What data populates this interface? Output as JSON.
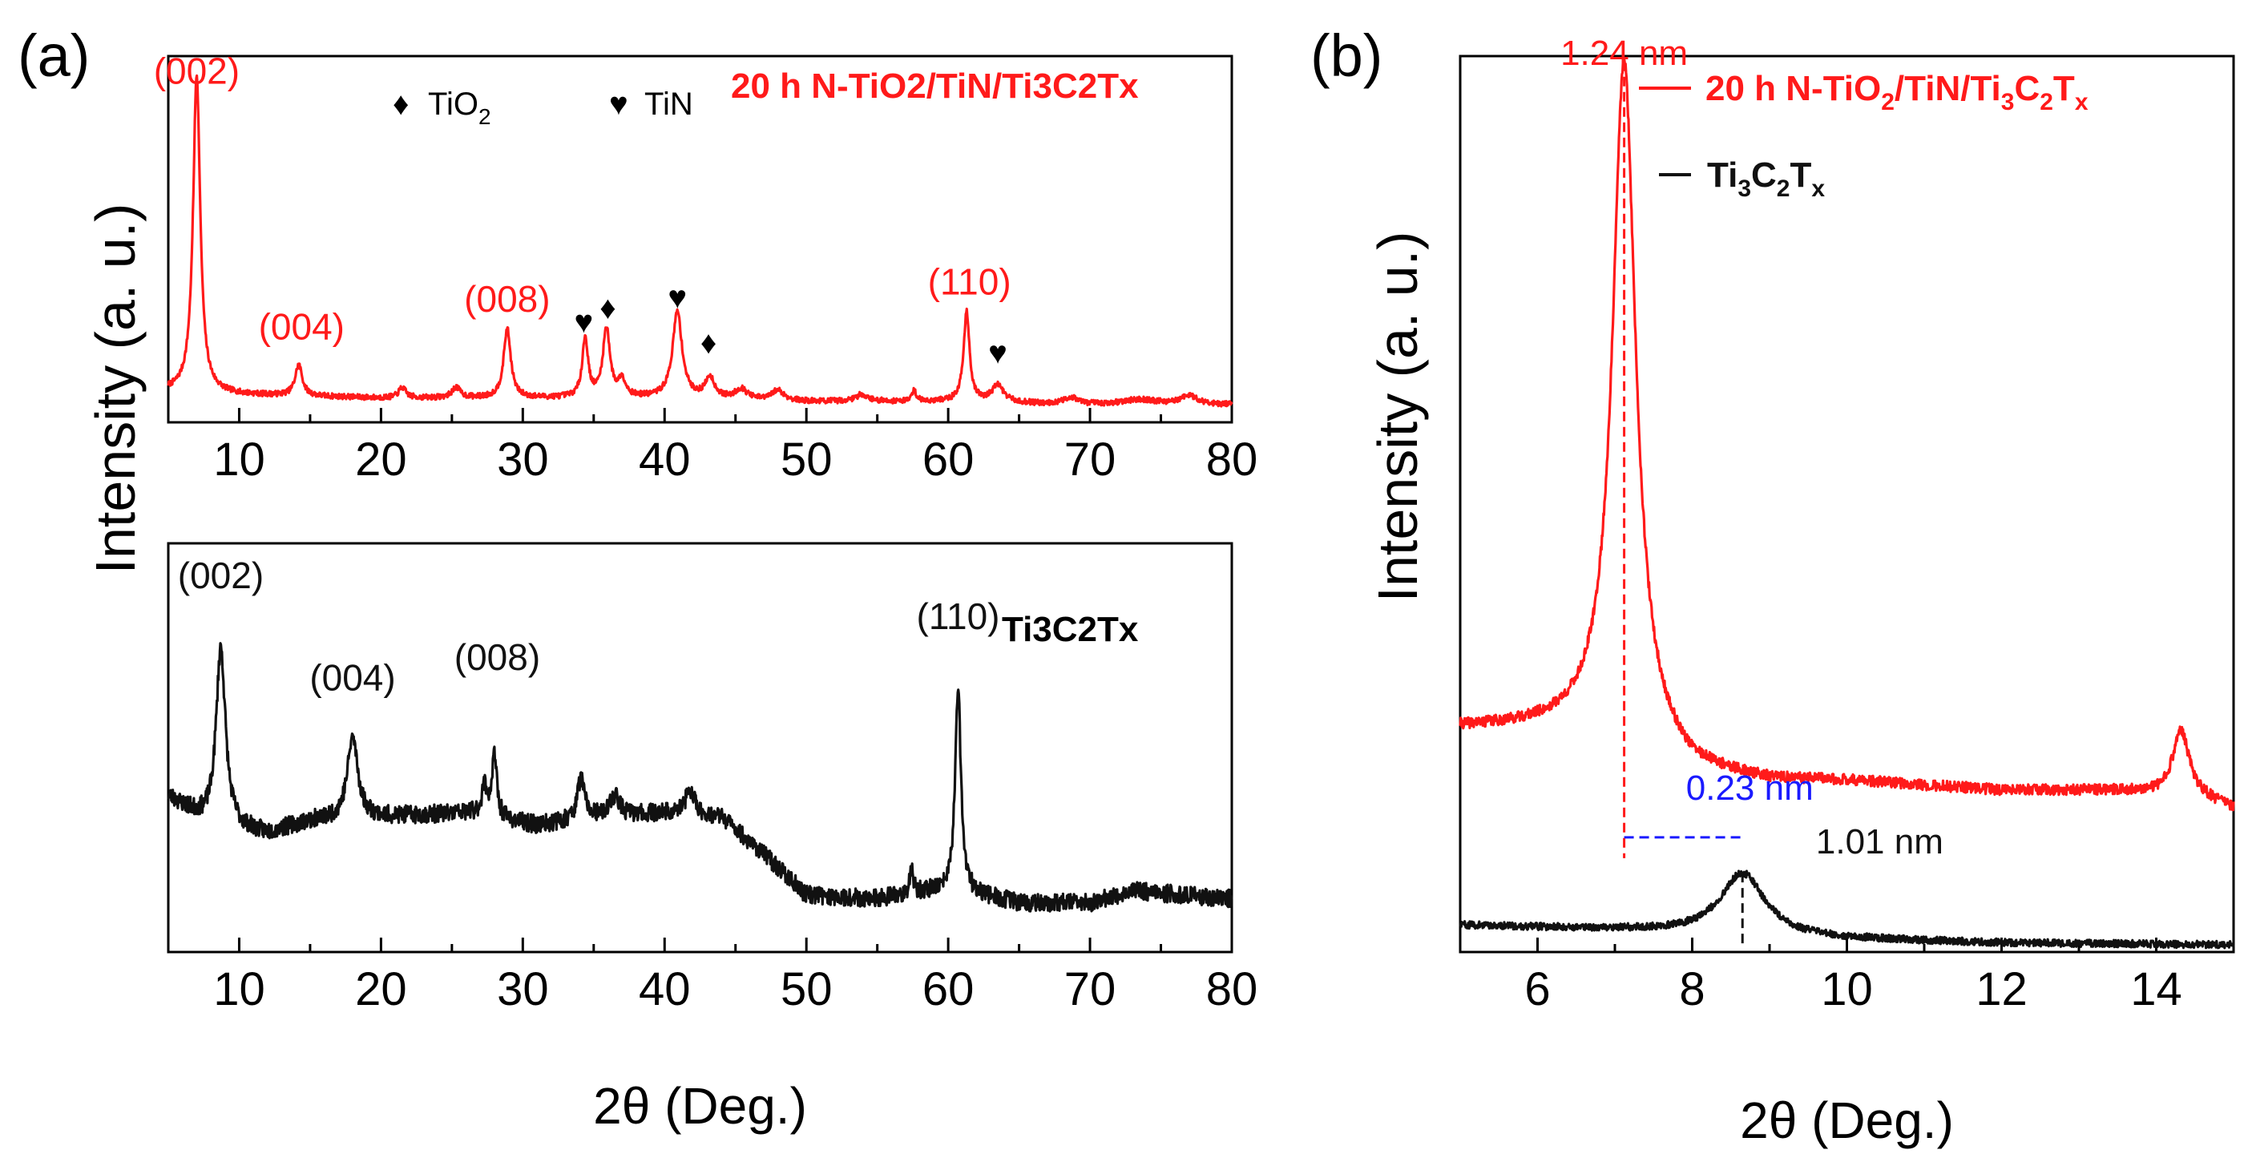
{
  "figure": {
    "panel_a_label": "(a)",
    "panel_b_label": "(b)"
  },
  "colors": {
    "red": "#ff1a1a",
    "black": "#111111",
    "blue": "#1a1aff",
    "axis": "#000000"
  },
  "chart_data": [
    {
      "id": "a_top",
      "type": "line",
      "title": "20 h N-TiO2/TiN/Ti3C2Tx",
      "xlabel": "2θ (Deg.)",
      "ylabel": "Intensity (a. u.)",
      "xlim": [
        5,
        80
      ],
      "ylim": [
        0,
        1.06
      ],
      "xticks": [
        10,
        20,
        30,
        40,
        50,
        60,
        70,
        80
      ],
      "series": [
        {
          "name": "20 h N-TiO2/TiN/Ti3C2Tx",
          "color": "#ff1a1a",
          "baseline": [
            [
              5,
              0.09
            ],
            [
              10,
              0.08
            ],
            [
              20,
              0.07
            ],
            [
              30,
              0.07
            ],
            [
              40,
              0.07
            ],
            [
              50,
              0.06
            ],
            [
              60,
              0.06
            ],
            [
              70,
              0.05
            ],
            [
              80,
              0.05
            ]
          ],
          "peaks": [
            [
              7.0,
              0.92,
              0.3
            ],
            [
              14.2,
              0.09,
              0.3
            ],
            [
              21.5,
              0.03,
              0.3
            ],
            [
              25.3,
              0.03,
              0.35
            ],
            [
              28.9,
              0.2,
              0.3
            ],
            [
              34.4,
              0.17,
              0.25
            ],
            [
              35.9,
              0.2,
              0.3
            ],
            [
              37.0,
              0.05,
              0.3
            ],
            [
              40.9,
              0.25,
              0.4
            ],
            [
              43.2,
              0.06,
              0.4
            ],
            [
              45.4,
              0.03,
              0.5
            ],
            [
              48.0,
              0.03,
              0.5
            ],
            [
              53.9,
              0.02,
              0.5
            ],
            [
              57.6,
              0.03,
              0.2
            ],
            [
              61.3,
              0.26,
              0.25
            ],
            [
              63.5,
              0.05,
              0.5
            ],
            [
              68.7,
              0.02,
              0.6
            ],
            [
              73.5,
              0.015,
              1.5
            ],
            [
              77.0,
              0.025,
              0.8
            ]
          ],
          "noise": 0.008
        }
      ],
      "annotations": [
        {
          "text": "(002)",
          "x": 7.0,
          "y": 0.98,
          "color": "#ff1a1a"
        },
        {
          "text": "(004)",
          "x": 14.4,
          "y": 0.24,
          "color": "#ff1a1a"
        },
        {
          "text": "(008)",
          "x": 28.9,
          "y": 0.32,
          "color": "#ff1a1a"
        },
        {
          "text": "(110)",
          "x": 61.5,
          "y": 0.37,
          "color": "#ff1a1a"
        }
      ],
      "markers": [
        {
          "symbol": "♥",
          "x": 34.3,
          "y": 0.26
        },
        {
          "symbol": "♦",
          "x": 36.0,
          "y": 0.3
        },
        {
          "symbol": "♥",
          "x": 40.9,
          "y": 0.33
        },
        {
          "symbol": "♦",
          "x": 43.1,
          "y": 0.2
        },
        {
          "symbol": "♥",
          "x": 63.5,
          "y": 0.17
        }
      ],
      "legend": [
        {
          "symbol": "♦",
          "prefix": "TiO",
          "sub": "2"
        },
        {
          "symbol": "♥",
          "prefix": "TiN",
          "sub": ""
        }
      ]
    },
    {
      "id": "a_bottom",
      "type": "line",
      "title": "Ti3C2Tx",
      "xlabel": "2θ (Deg.)",
      "ylabel": "Intensity (a. u.)",
      "xlim": [
        5,
        80
      ],
      "ylim": [
        0,
        1.0
      ],
      "xticks": [
        10,
        20,
        30,
        40,
        50,
        60,
        70,
        80
      ],
      "series": [
        {
          "name": "Ti3C2Tx",
          "color": "#111111",
          "baseline": [
            [
              5,
              0.38
            ],
            [
              8,
              0.31
            ],
            [
              12,
              0.29
            ],
            [
              15,
              0.32
            ],
            [
              20,
              0.33
            ],
            [
              26,
              0.34
            ],
            [
              31,
              0.31
            ],
            [
              35,
              0.33
            ],
            [
              40,
              0.34
            ],
            [
              44,
              0.33
            ],
            [
              47,
              0.24
            ],
            [
              50,
              0.14
            ],
            [
              55,
              0.13
            ],
            [
              59,
              0.15
            ],
            [
              62,
              0.14
            ],
            [
              65,
              0.12
            ],
            [
              70,
              0.12
            ],
            [
              73,
              0.15
            ],
            [
              80,
              0.13
            ]
          ],
          "peaks": [
            [
              8.7,
              0.44,
              0.4
            ],
            [
              18.0,
              0.2,
              0.45
            ],
            [
              27.3,
              0.07,
              0.25
            ],
            [
              28.0,
              0.15,
              0.2
            ],
            [
              34.1,
              0.1,
              0.3
            ],
            [
              36.5,
              0.05,
              0.4
            ],
            [
              41.8,
              0.06,
              0.4
            ],
            [
              57.4,
              0.06,
              0.15
            ],
            [
              60.7,
              0.49,
              0.25
            ]
          ],
          "noise": 0.022
        }
      ],
      "annotations": [
        {
          "text": "(002)",
          "x": 8.7,
          "y": 0.89,
          "color": "#111111"
        },
        {
          "text": "(004)",
          "x": 18.0,
          "y": 0.64,
          "color": "#111111"
        },
        {
          "text": "(008)",
          "x": 28.2,
          "y": 0.69,
          "color": "#111111"
        },
        {
          "text": "(110)",
          "x": 60.7,
          "y": 0.79,
          "color": "#111111"
        }
      ],
      "legend_parts": [
        "Ti",
        "3",
        "C",
        "2",
        "T",
        "x"
      ]
    },
    {
      "id": "b",
      "type": "line",
      "xlabel": "2θ (Deg.)",
      "ylabel": "Intensity (a. u.)",
      "xlim": [
        5,
        15
      ],
      "ylim": [
        0,
        1.0
      ],
      "xticks": [
        6,
        8,
        10,
        12,
        14
      ],
      "series": [
        {
          "name": "20 h N-TiO2/TiN/Ti3C2Tx",
          "color": "#ff1a1a",
          "baseline": [
            [
              5,
              0.25
            ],
            [
              6,
              0.25
            ],
            [
              7,
              0.25
            ],
            [
              8,
              0.2
            ],
            [
              9,
              0.19
            ],
            [
              10,
              0.19
            ],
            [
              12,
              0.18
            ],
            [
              13.5,
              0.18
            ],
            [
              14.6,
              0.17
            ],
            [
              15,
              0.16
            ]
          ],
          "peaks": [
            [
              7.12,
              0.75,
              0.18
            ],
            [
              14.32,
              0.075,
              0.13
            ]
          ],
          "noise": 0.006
        },
        {
          "name": "Ti3C2Tx",
          "color": "#111111",
          "baseline": [
            [
              5,
              0.03
            ],
            [
              7,
              0.025
            ],
            [
              9.5,
              0.015
            ],
            [
              12,
              0.01
            ],
            [
              15,
              0.008
            ]
          ],
          "peaks": [
            [
              8.65,
              0.07,
              0.35
            ]
          ],
          "noise": 0.004
        }
      ],
      "legend": [
        {
          "color": "#ff1a1a",
          "prefix": "20 h N-TiO",
          "sub": "2",
          "mid": "/TiN/Ti",
          "sub2": "3",
          "c": "C",
          "sub3": "2",
          "t": "T",
          "sub4": "x"
        },
        {
          "color": "#111111",
          "prefix": "Ti",
          "sub": "3",
          "c": "C",
          "sub2": "2",
          "t": "T",
          "sub3": "x"
        }
      ],
      "annotations": [
        {
          "text": "1.24 nm",
          "x": 7.12,
          "y": 0.99,
          "color": "#ff1a1a"
        },
        {
          "text": "0.23 nm",
          "x": 7.92,
          "y": 0.17,
          "color": "#1a1aff"
        },
        {
          "text": "1.01 nm",
          "x": 9.6,
          "y": 0.11,
          "color": "#111111"
        }
      ],
      "guides": {
        "red_peak_x": 7.12,
        "black_peak_x": 8.65,
        "bracket_y": 0.128
      }
    }
  ]
}
